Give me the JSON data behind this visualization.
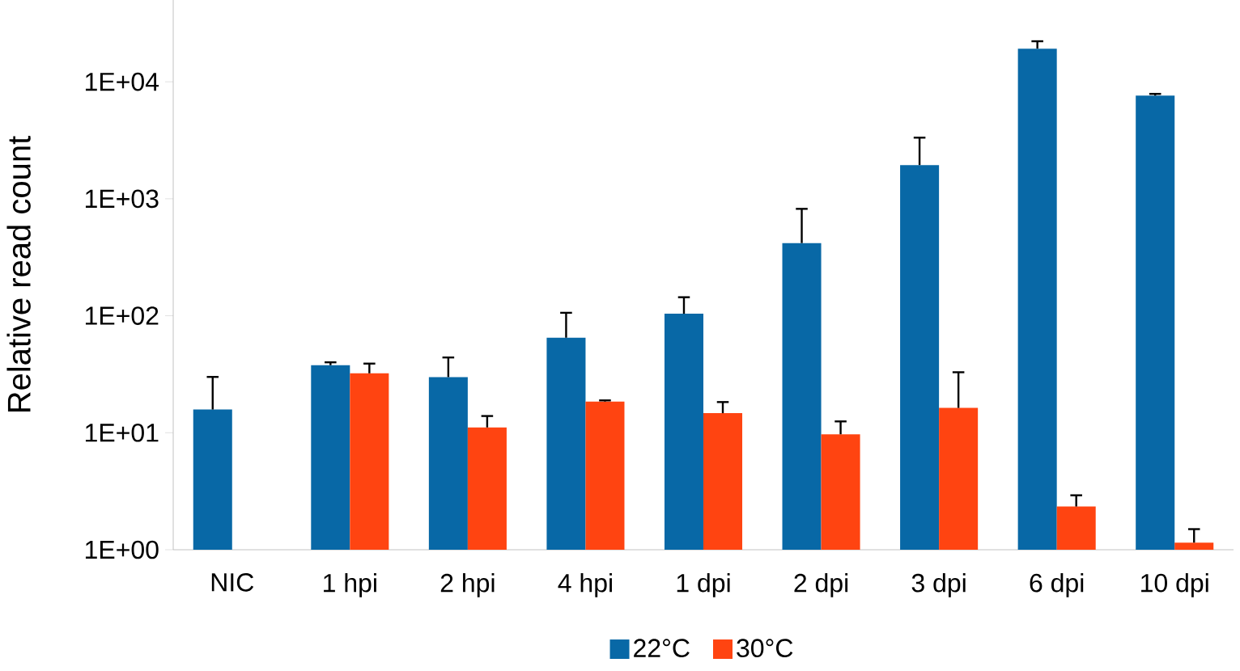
{
  "chart_data": {
    "type": "bar",
    "ylabel": "Relative read count",
    "categories": [
      "NIC",
      "1 hpi",
      "2 hpi",
      "4 hpi",
      "1 dpi",
      "2 dpi",
      "3 dpi",
      "6 dpi",
      "10 dpi"
    ],
    "series": [
      {
        "name": "22°C",
        "color": "#0868a6",
        "values": [
          15.8,
          37.8,
          29.9,
          64.9,
          104,
          418,
          1940,
          19200,
          7620
        ],
        "errors": [
          [
            15.8,
            30
          ],
          [
            37.8,
            40
          ],
          [
            29.9,
            44
          ],
          [
            64.9,
            106
          ],
          [
            104,
            144
          ],
          [
            418,
            820
          ],
          [
            1940,
            3330
          ],
          [
            19200,
            22200
          ],
          [
            7620,
            7880
          ]
        ]
      },
      {
        "name": "30°C",
        "color": "#ff4411",
        "values": [
          1,
          32.2,
          11.1,
          18.5,
          14.7,
          9.7,
          16.3,
          2.34,
          1.15
        ],
        "errors": [
          null,
          [
            32.2,
            39
          ],
          [
            11.1,
            13.9
          ],
          [
            18.5,
            18.9
          ],
          [
            14.7,
            18.3
          ],
          [
            9.7,
            12.5
          ],
          [
            16.3,
            32.9
          ],
          [
            2.34,
            2.92
          ],
          [
            1.15,
            1.5
          ]
        ]
      }
    ],
    "log": "y",
    "ylim": [
      1,
      50000
    ],
    "yticks": [
      {
        "value": 1,
        "label": "1E+00"
      },
      {
        "value": 10,
        "label": "1E+01"
      },
      {
        "value": 100,
        "label": "1E+02"
      },
      {
        "value": 1000,
        "label": "1E+03"
      },
      {
        "value": 10000,
        "label": "1E+04"
      }
    ],
    "legend": "bottom",
    "grid": false
  }
}
